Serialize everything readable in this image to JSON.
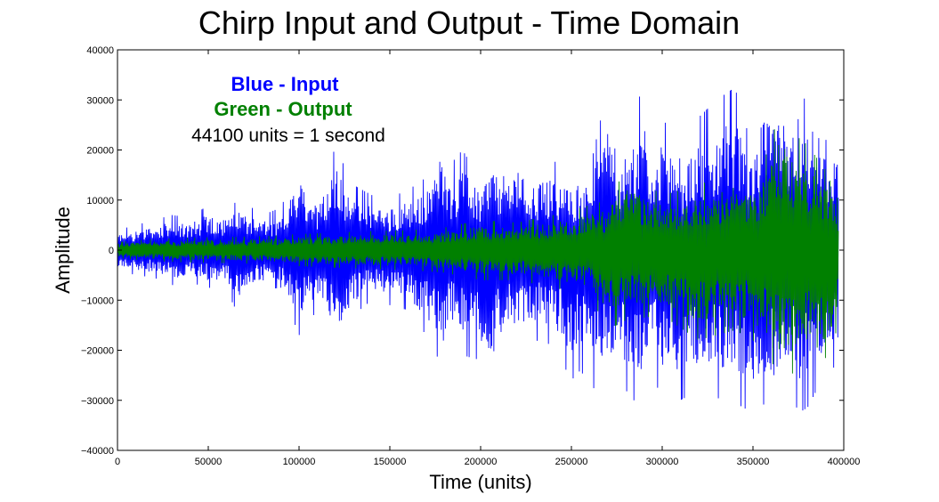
{
  "chart_data": {
    "type": "line",
    "title": "Chirp Input and Output - Time Domain",
    "xlabel": "Time (units)",
    "ylabel": "Amplitude",
    "xlim": [
      0,
      400000
    ],
    "ylim": [
      -40000,
      40000
    ],
    "xticks": [
      0,
      50000,
      100000,
      150000,
      200000,
      250000,
      300000,
      350000,
      400000
    ],
    "yticks": [
      -40000,
      -30000,
      -20000,
      -10000,
      0,
      10000,
      20000,
      30000,
      40000
    ],
    "grid": false,
    "annotations": [
      "Blue - Input",
      "Green - Output",
      "44100 units = 1 second"
    ],
    "x_end": 397000,
    "series": [
      {
        "color": "#0000ff",
        "envelope_x": [
          0,
          10000,
          20000,
          30000,
          40000,
          50000,
          60000,
          66000,
          70000,
          80000,
          90000,
          100000,
          110000,
          120000,
          130000,
          140000,
          150000,
          160000,
          170000,
          180000,
          183000,
          190000,
          200000,
          205000,
          210000,
          220000,
          230000,
          240000,
          250000,
          255000,
          260000,
          270000,
          275000,
          280000,
          290000,
          295000,
          300000,
          310000,
          320000,
          330000,
          340000,
          350000,
          355000,
          360000,
          370000,
          375000,
          380000,
          385000,
          390000,
          397000
        ],
        "envelope_max": [
          4000,
          5000,
          6000,
          7000,
          6500,
          9000,
          7500,
          10000,
          9500,
          7000,
          8500,
          17000,
          11000,
          20500,
          13000,
          11000,
          10500,
          12000,
          14500,
          25500,
          17000,
          20000,
          14000,
          21000,
          18000,
          20000,
          16000,
          18000,
          14500,
          17500,
          16000,
          32500,
          17000,
          23500,
          33000,
          20000,
          27000,
          18000,
          26500,
          30000,
          32500,
          20000,
          32500,
          31000,
          32500,
          26000,
          32500,
          31000,
          22000,
          23000
        ],
        "envelope_min": [
          -4000,
          -5000,
          -5500,
          -7000,
          -6500,
          -7500,
          -8000,
          -12500,
          -9000,
          -8000,
          -7500,
          -17000,
          -12000,
          -21000,
          -13000,
          -10000,
          -11000,
          -12000,
          -17000,
          -24000,
          -17000,
          -21000,
          -22000,
          -29000,
          -21000,
          -18000,
          -18000,
          -19000,
          -26000,
          -24000,
          -27000,
          -29500,
          -25000,
          -28000,
          -32500,
          -26000,
          -29000,
          -30000,
          -28000,
          -29500,
          -30500,
          -32500,
          -30500,
          -32500,
          -27000,
          -32500,
          -31500,
          -28000,
          -26000,
          -22000
        ]
      },
      {
        "color": "#008000",
        "envelope_x": [
          0,
          20000,
          40000,
          60000,
          80000,
          100000,
          120000,
          140000,
          160000,
          180000,
          200000,
          220000,
          240000,
          260000,
          270000,
          280000,
          300000,
          320000,
          340000,
          350000,
          360000,
          365000,
          370000,
          380000,
          390000,
          397000
        ],
        "envelope_max": [
          1600,
          2200,
          2500,
          2600,
          2800,
          3200,
          3500,
          3800,
          4000,
          4500,
          6000,
          5500,
          7000,
          9000,
          10000,
          16000,
          11000,
          13000,
          16000,
          14000,
          21000,
          29500,
          24000,
          21000,
          16000,
          10000
        ],
        "envelope_min": [
          -1600,
          -2200,
          -2500,
          -2600,
          -2800,
          -3200,
          -3500,
          -3800,
          -4000,
          -4500,
          -6000,
          -6000,
          -7500,
          -9000,
          -16000,
          -14000,
          -13000,
          -18000,
          -16000,
          -18000,
          -22000,
          -26000,
          -25000,
          -23000,
          -27000,
          -14000
        ]
      }
    ]
  }
}
